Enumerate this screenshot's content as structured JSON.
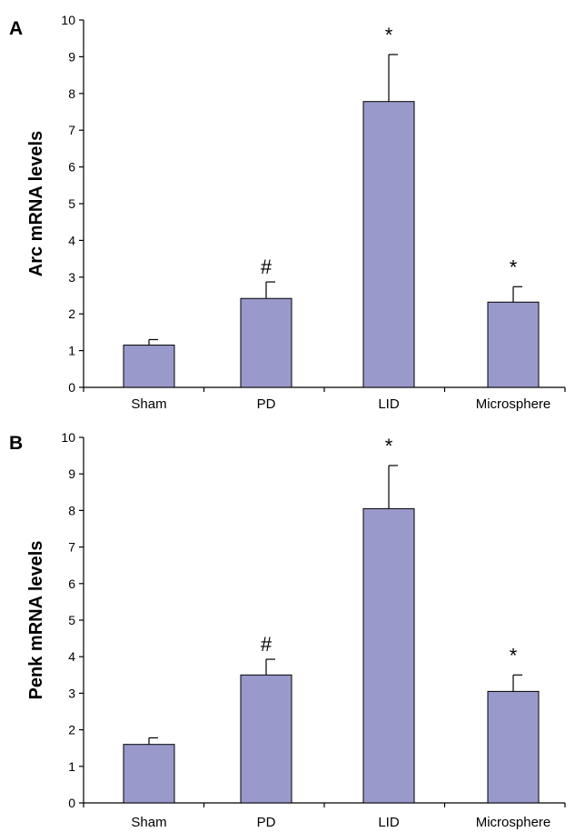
{
  "chart_data": [
    {
      "type": "bar",
      "panel": "A",
      "ylabel": "Arc mRNA levels",
      "xlabel": "",
      "title": "",
      "categories": [
        "Sham",
        "PD",
        "LID",
        "Microsphere"
      ],
      "values": [
        1.15,
        2.42,
        7.78,
        2.32
      ],
      "errors": [
        0.15,
        0.45,
        1.28,
        0.42
      ],
      "annotations": [
        "",
        "#",
        "*",
        "*"
      ],
      "ylim": [
        0,
        10
      ],
      "yticks": [
        "0",
        "1",
        "2",
        "3",
        "4",
        "5",
        "6",
        "7",
        "8",
        "9",
        "10"
      ],
      "bar_color": "#9999cc",
      "grid": false,
      "legend": "none"
    },
    {
      "type": "bar",
      "panel": "B",
      "ylabel": "Penk mRNA levels",
      "xlabel": "",
      "title": "",
      "categories": [
        "Sham",
        "PD",
        "LID",
        "Microsphere"
      ],
      "values": [
        1.6,
        3.5,
        8.05,
        3.05
      ],
      "errors": [
        0.18,
        0.43,
        1.18,
        0.45
      ],
      "annotations": [
        "",
        "#",
        "*",
        "*"
      ],
      "ylim": [
        0,
        10
      ],
      "yticks": [
        "0",
        "1",
        "2",
        "3",
        "4",
        "5",
        "6",
        "7",
        "8",
        "9",
        "10"
      ],
      "bar_color": "#9999cc",
      "grid": false,
      "legend": "none"
    }
  ]
}
